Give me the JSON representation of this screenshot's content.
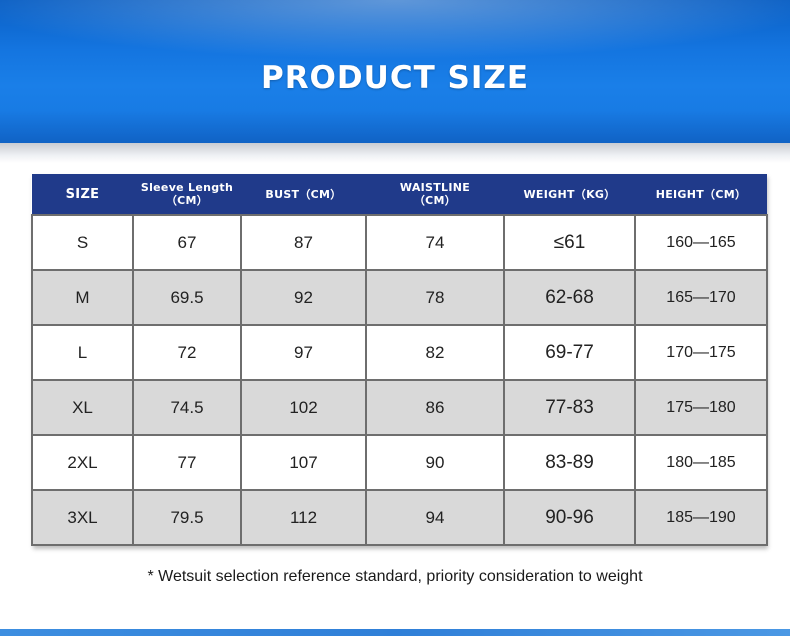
{
  "banner": {
    "title": "PRODUCT SIZE",
    "color": "#1675df"
  },
  "table": {
    "header_color": "#203a8a",
    "headers": [
      "SIZE",
      "Sleeve Length\n（CM）",
      "BUST（CM）",
      "WAISTLINE\n（CM）",
      "WEIGHT（KG）",
      "HEIGHT（CM）"
    ],
    "rows": [
      [
        "S",
        "67",
        "87",
        "74",
        "≤61",
        "160—165"
      ],
      [
        "M",
        "69.5",
        "92",
        "78",
        "62-68",
        "165—170"
      ],
      [
        "L",
        "72",
        "97",
        "82",
        "69-77",
        "170—175"
      ],
      [
        "XL",
        "74.5",
        "102",
        "86",
        "77-83",
        "175—180"
      ],
      [
        "2XL",
        "77",
        "107",
        "90",
        "83-89",
        "180—185"
      ],
      [
        "3XL",
        "79.5",
        "112",
        "94",
        "90-96",
        "185—190"
      ]
    ]
  },
  "note": "* Wetsuit selection reference standard, priority consideration to weight"
}
